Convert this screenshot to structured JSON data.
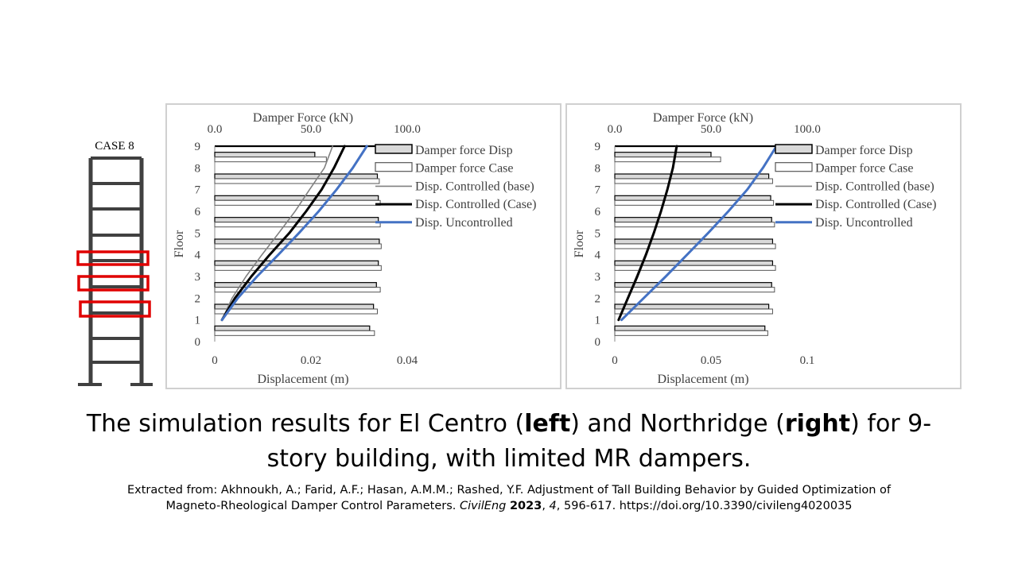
{
  "frame": {
    "label": "CASE 8",
    "colors": {
      "structure": "#404040",
      "highlight": "#e00000"
    },
    "highlighted_bays": [
      1,
      2,
      3
    ]
  },
  "caption": {
    "part1": "The simulation results for El Centro (",
    "left_word": "left",
    "part2": ") and Northridge (",
    "right_word": "right",
    "part3": ") for 9-story building, with limited MR dampers."
  },
  "citation": {
    "line1": "Extracted from: Akhnoukh, A.; Farid, A.F.; Hasan, A.M.M.; Rashed, Y.F. Adjustment of Tall Building Behavior by Guided Optimization of",
    "line2_start": "Magneto-Rheological Damper Control Parameters.",
    "journal": "CivilEng",
    "year": "2023",
    "volume": "4",
    "pages": ", 596-617. https://doi.org/10.3390/civileng4020035"
  },
  "colors": {
    "bar_dark_fill": "#d9d9d9",
    "bar_light_fill": "#ffffff",
    "bar_stroke": "#000000",
    "controlled_base": "#808080",
    "controlled_case": "#000000",
    "uncontrolled": "#4472c4"
  },
  "chart_data": [
    {
      "type": "bar",
      "orientation": "horizontal",
      "top_axis_title": "Damper Force (kN)",
      "top_ticks": [
        "0.0",
        "50.0",
        "100.0"
      ],
      "top_xlim": [
        0,
        100
      ],
      "bottom_axis_title": "Displacement (m)",
      "bottom_ticks": [
        "0",
        "0.02",
        "0.04"
      ],
      "bottom_xlim": [
        0,
        0.04
      ],
      "ylabel": "Floor",
      "y_ticks": [
        "0",
        "1",
        "2",
        "3",
        "4",
        "5",
        "6",
        "7",
        "8",
        "9"
      ],
      "ylim": [
        0,
        9
      ],
      "legend": [
        "Damper force Disp",
        "Damper force Case",
        "Disp. Controlled (base)",
        "Disp. Controlled (Case)",
        "Disp. Uncontrolled"
      ],
      "legend_position": "top-right",
      "bar_floors": [
        0,
        1,
        2,
        3,
        4,
        5,
        6,
        7,
        8
      ],
      "series": [
        {
          "name": "Damper force Disp",
          "kind": "bar",
          "values": [
            80.5,
            82.5,
            84.0,
            85.0,
            85.5,
            85.0,
            85.0,
            84.5,
            52.0
          ]
        },
        {
          "name": "Damper force Case",
          "kind": "bar",
          "values": [
            83.0,
            84.5,
            86.0,
            86.5,
            86.5,
            86.0,
            86.0,
            85.5,
            58.0
          ]
        },
        {
          "name": "Disp. Controlled (base)",
          "kind": "line",
          "x": [
            0.0015,
            0.0036,
            0.0065,
            0.0098,
            0.0133,
            0.0167,
            0.0197,
            0.0228,
            0.0245
          ],
          "y": [
            1,
            2,
            3,
            4,
            5,
            6,
            7,
            8,
            9
          ]
        },
        {
          "name": "Disp. Controlled (Case)",
          "kind": "line",
          "x": [
            0.0015,
            0.0042,
            0.0076,
            0.0114,
            0.0155,
            0.019,
            0.0222,
            0.0248,
            0.027
          ],
          "y": [
            1,
            2,
            3,
            4,
            5,
            6,
            7,
            8,
            9
          ]
        },
        {
          "name": "Disp. Uncontrolled",
          "kind": "line",
          "x": [
            0.0015,
            0.0048,
            0.0088,
            0.0132,
            0.0175,
            0.0216,
            0.0253,
            0.0287,
            0.0316
          ],
          "y": [
            1,
            2,
            3,
            4,
            5,
            6,
            7,
            8,
            9
          ]
        }
      ]
    },
    {
      "type": "bar",
      "orientation": "horizontal",
      "top_axis_title": "Damper Force (kN)",
      "top_ticks": [
        "0.0",
        "50.0",
        "100.0"
      ],
      "top_xlim": [
        0,
        100
      ],
      "bottom_axis_title": "Displacement (m)",
      "bottom_ticks": [
        "0",
        "0.05",
        "0.1"
      ],
      "bottom_xlim": [
        0,
        0.1
      ],
      "ylabel": "Floor",
      "y_ticks": [
        "0",
        "1",
        "2",
        "3",
        "4",
        "5",
        "6",
        "7",
        "8",
        "9"
      ],
      "ylim": [
        0,
        9
      ],
      "legend": [
        "Damper force Disp",
        "Damper force Case",
        "Disp. Controlled (base)",
        "Disp. Controlled (Case)",
        "Disp. Uncontrolled"
      ],
      "legend_position": "top-right",
      "bar_floors": [
        0,
        1,
        2,
        3,
        4,
        5,
        6,
        7,
        8
      ],
      "series": [
        {
          "name": "Damper force Disp",
          "kind": "bar",
          "values": [
            78.0,
            80.0,
            81.5,
            82.0,
            82.0,
            81.5,
            81.0,
            80.0,
            50.0
          ]
        },
        {
          "name": "Damper force Case",
          "kind": "bar",
          "values": [
            79.5,
            82.0,
            83.0,
            83.5,
            83.5,
            83.0,
            82.5,
            82.0,
            55.0
          ]
        },
        {
          "name": "Disp. Controlled (base)",
          "kind": "line",
          "x": [
            0.002,
            0.0065,
            0.0112,
            0.0158,
            0.02,
            0.0238,
            0.0272,
            0.03,
            0.0318
          ],
          "y": [
            1,
            2,
            3,
            4,
            5,
            6,
            7,
            8,
            9
          ]
        },
        {
          "name": "Disp. Controlled (Case)",
          "kind": "line",
          "x": [
            0.002,
            0.0068,
            0.0117,
            0.0162,
            0.0203,
            0.024,
            0.0273,
            0.0302,
            0.0322
          ],
          "y": [
            1,
            2,
            3,
            4,
            5,
            6,
            7,
            8,
            9
          ]
        },
        {
          "name": "Disp. Uncontrolled",
          "kind": "line",
          "x": [
            0.0035,
            0.015,
            0.0265,
            0.0375,
            0.0485,
            0.059,
            0.0688,
            0.077,
            0.084
          ],
          "y": [
            1,
            2,
            3,
            4,
            5,
            6,
            7,
            8,
            9
          ]
        }
      ]
    }
  ]
}
